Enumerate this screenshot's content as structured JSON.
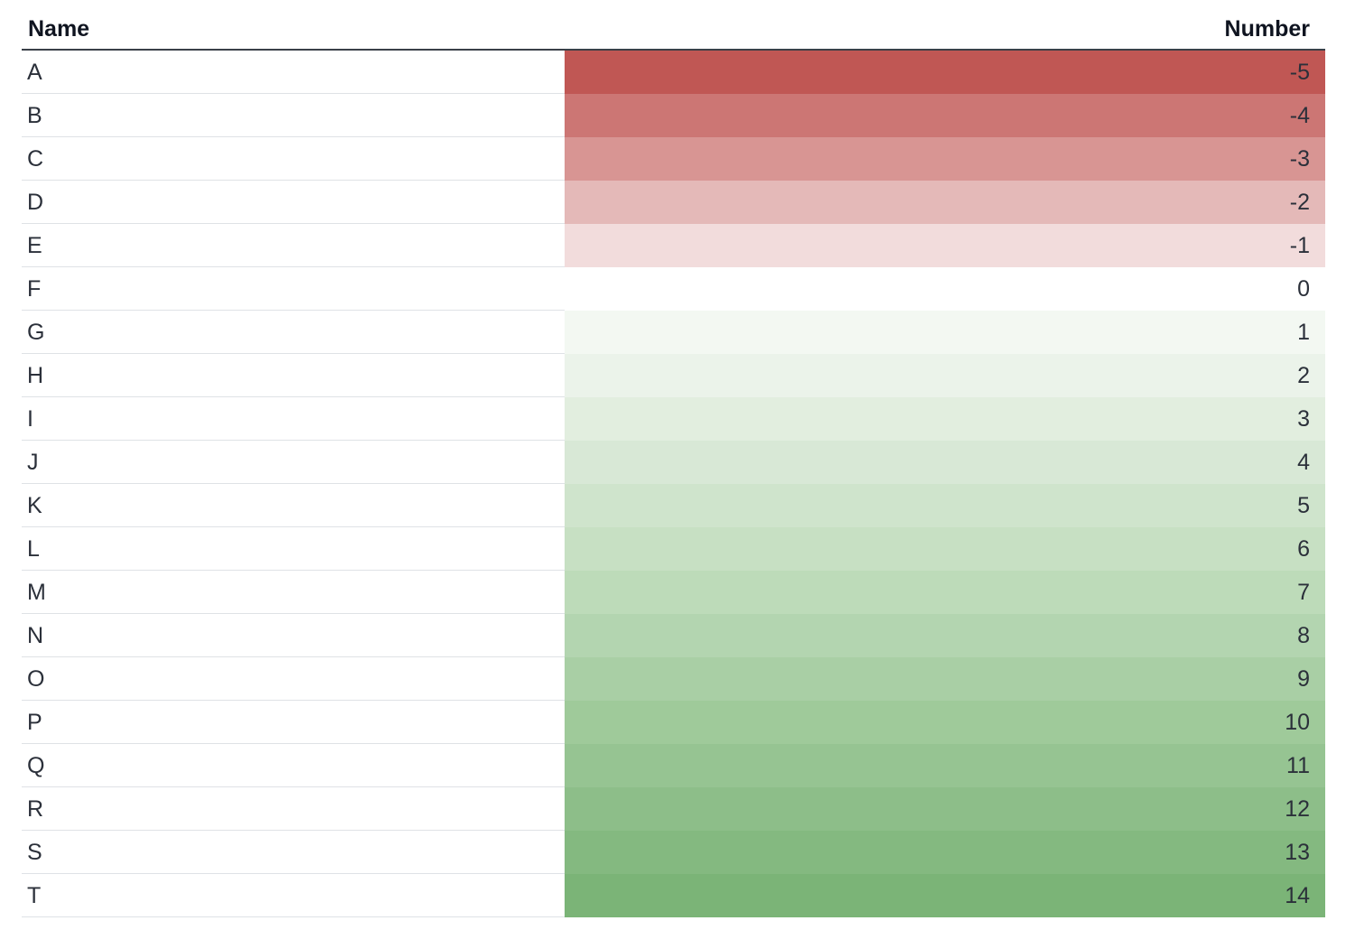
{
  "table": {
    "headers": {
      "name": "Name",
      "number": "Number"
    },
    "rows": [
      {
        "name": "A",
        "value": "-5",
        "color": "#c05754"
      },
      {
        "name": "B",
        "value": "-4",
        "color": "#cc7674"
      },
      {
        "name": "C",
        "value": "-3",
        "color": "#d89593"
      },
      {
        "name": "D",
        "value": "-2",
        "color": "#e4b9b8"
      },
      {
        "name": "E",
        "value": "-1",
        "color": "#f2dcdc"
      },
      {
        "name": "F",
        "value": "0",
        "color": "#ffffff"
      },
      {
        "name": "G",
        "value": "1",
        "color": "#f3f8f2"
      },
      {
        "name": "H",
        "value": "2",
        "color": "#ebf3ea"
      },
      {
        "name": "I",
        "value": "3",
        "color": "#e2eedf"
      },
      {
        "name": "J",
        "value": "4",
        "color": "#d8e8d6"
      },
      {
        "name": "K",
        "value": "5",
        "color": "#cfe4cc"
      },
      {
        "name": "L",
        "value": "6",
        "color": "#c7e0c3"
      },
      {
        "name": "M",
        "value": "7",
        "color": "#bddbb9"
      },
      {
        "name": "N",
        "value": "8",
        "color": "#b3d5b0"
      },
      {
        "name": "O",
        "value": "9",
        "color": "#a9cfa5"
      },
      {
        "name": "P",
        "value": "10",
        "color": "#9fca9a"
      },
      {
        "name": "Q",
        "value": "11",
        "color": "#96c492"
      },
      {
        "name": "R",
        "value": "12",
        "color": "#8dbe89"
      },
      {
        "name": "S",
        "value": "13",
        "color": "#84b980"
      },
      {
        "name": "T",
        "value": "14",
        "color": "#7bb477"
      }
    ]
  }
}
